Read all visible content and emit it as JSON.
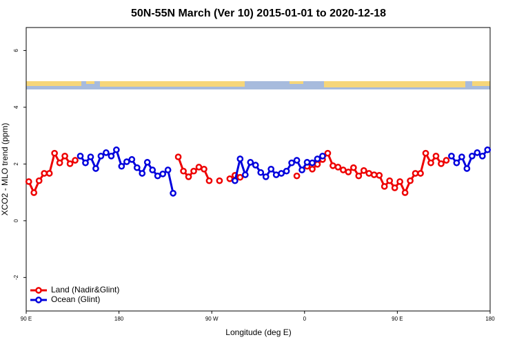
{
  "chart_data": {
    "type": "line",
    "title": "50N-55N March (Ver 10)   2015-01-01 to 2020-12-18",
    "xlabel": "Longitude (deg E)",
    "ylabel": "XCO2 - MLO trend (ppm)",
    "x": [
      92.5,
      97.5,
      102.5,
      107.5,
      112.5,
      117.5,
      122.5,
      127.5,
      132.5,
      137.5,
      142.5,
      147.5,
      152.5,
      157.5,
      162.5,
      167.5,
      172.5,
      177.5,
      182.5,
      187.5,
      192.5,
      197.5,
      202.5,
      207.5,
      212.5,
      217.5,
      222.5,
      227.5,
      232.5,
      237.5,
      242.5,
      247.5,
      252.5,
      257.5,
      262.5,
      267.5,
      272.5,
      277.5,
      282.5,
      287.5,
      292.5,
      297.5,
      302.5,
      307.5,
      312.5,
      317.5,
      322.5,
      327.5,
      332.5,
      337.5,
      342.5,
      347.5,
      352.5,
      357.5,
      362.5,
      367.5,
      372.5,
      377.5,
      382.5,
      387.5,
      392.5,
      397.5,
      402.5,
      407.5,
      412.5,
      417.5,
      422.5,
      427.5,
      432.5,
      437.5,
      442.5,
      447.5,
      452.5,
      457.5,
      462.5,
      467.5,
      472.5,
      477.5,
      482.5,
      487.5,
      492.5,
      497.5,
      502.5,
      507.5,
      512.5,
      517.5,
      522.5,
      527.5,
      532.5,
      537.5
    ],
    "series": [
      {
        "name": "Land (Nadir&Glint)",
        "color": "#ee0000",
        "values": [
          1.38,
          0.99,
          1.41,
          1.67,
          1.67,
          2.38,
          2.04,
          2.28,
          2.01,
          2.13,
          null,
          null,
          null,
          null,
          null,
          null,
          null,
          null,
          null,
          null,
          null,
          null,
          null,
          null,
          null,
          null,
          null,
          null,
          null,
          2.25,
          1.75,
          1.55,
          1.75,
          1.89,
          1.82,
          1.41,
          null,
          1.41,
          null,
          1.48,
          1.6,
          1.53,
          null,
          null,
          null,
          null,
          null,
          null,
          null,
          null,
          null,
          null,
          1.58,
          null,
          1.92,
          1.82,
          1.99,
          2.16,
          2.38,
          1.94,
          1.89,
          1.79,
          1.72,
          1.87,
          1.58,
          1.77,
          1.67,
          1.62,
          1.6,
          1.21,
          1.41,
          1.16,
          1.38,
          0.99,
          1.41,
          1.67,
          1.67,
          2.38,
          2.04,
          2.28,
          2.01,
          2.13,
          null,
          null,
          null,
          null,
          null,
          null,
          null,
          null
        ]
      },
      {
        "name": "Ocean (Glint)",
        "color": "#0000dd",
        "values": [
          null,
          null,
          null,
          null,
          null,
          null,
          null,
          null,
          null,
          null,
          2.28,
          2.04,
          2.25,
          1.84,
          2.28,
          2.4,
          2.28,
          2.5,
          1.92,
          2.08,
          2.16,
          1.87,
          1.67,
          2.06,
          1.79,
          1.58,
          1.65,
          1.79,
          0.97,
          null,
          null,
          null,
          null,
          null,
          null,
          null,
          null,
          null,
          null,
          null,
          1.41,
          2.18,
          1.62,
          2.06,
          1.96,
          1.7,
          1.55,
          1.82,
          1.62,
          1.67,
          1.75,
          2.04,
          2.13,
          1.79,
          2.06,
          2.04,
          2.18,
          2.28,
          null,
          null,
          null,
          null,
          null,
          null,
          null,
          null,
          null,
          null,
          null,
          null,
          null,
          null,
          null,
          null,
          null,
          null,
          null,
          null,
          null,
          null,
          null,
          null,
          2.28,
          2.04,
          2.25,
          1.84,
          2.28,
          2.4,
          2.28,
          2.5
        ]
      }
    ],
    "xlim": [
      90,
      540
    ],
    "xticks": [
      {
        "value": 90,
        "label": "90 E"
      },
      {
        "value": 180,
        "label": "180"
      },
      {
        "value": 270,
        "label": "90 W"
      },
      {
        "value": 360,
        "label": "0"
      },
      {
        "value": 450,
        "label": "90 E"
      },
      {
        "value": 540,
        "label": "180"
      }
    ],
    "ylim": [
      -3.18,
      6.81
    ],
    "yticks": [
      -2,
      0,
      2,
      4,
      6
    ],
    "legend": "bottom-left"
  }
}
